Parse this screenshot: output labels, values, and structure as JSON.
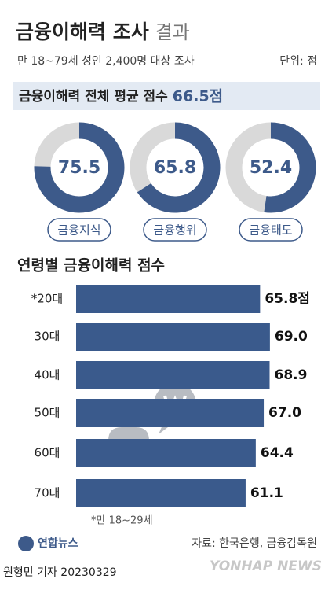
{
  "header": {
    "title": "금융이해력 조사",
    "title_light": "결과",
    "subtitle": "만 18~79세 성인 2,400명 대상 조사",
    "unit": "단위: 점",
    "overall_text": "금융이해력 전체 평균 점수",
    "overall_score": "66.5점"
  },
  "chart_data": [
    {
      "type": "donut",
      "categories": [
        "금융지식",
        "금융행위",
        "금융태도"
      ],
      "values": [
        75.5,
        65.8,
        52.4
      ],
      "ylim": [
        0,
        100
      ],
      "color": "#3d5a8a",
      "track_color": "#d9d9d9"
    },
    {
      "type": "hbar",
      "title": "연령별 금융이해력 점수",
      "categories": [
        "*20대",
        "30대",
        "40대",
        "50대",
        "60대",
        "70대"
      ],
      "values": [
        65.8,
        69.0,
        68.9,
        67.0,
        64.4,
        61.1
      ],
      "value_labels": [
        "65.8점",
        "69.0",
        "68.9",
        "67.0",
        "64.4",
        "61.1"
      ],
      "xlim": [
        6,
        80
      ],
      "color": "#3a5a8c"
    }
  ],
  "footer": {
    "note": "*만 18~29세",
    "logo": "연합뉴스",
    "source": "자료: 한국은행, 금융감독원",
    "byline": "원형민 기자  20230329",
    "watermark": "YONHAP NEWS"
  }
}
